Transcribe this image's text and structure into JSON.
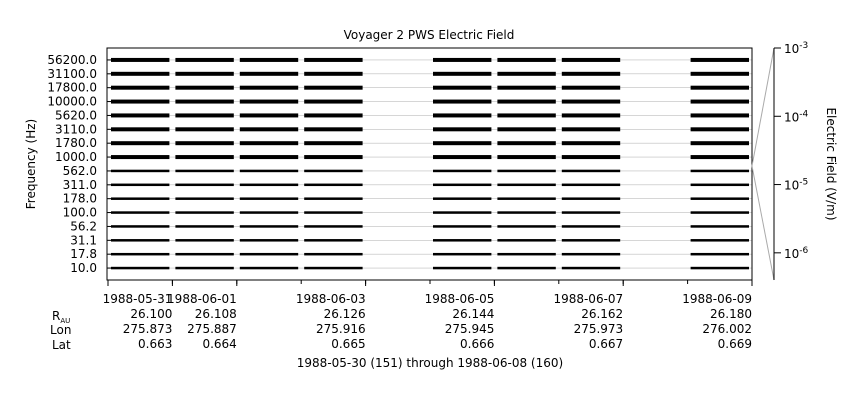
{
  "chart_data": {
    "type": "heatmap",
    "title": "Voyager 2 PWS Electric Field",
    "ylabel": "Frequency (Hz)",
    "colorbar_label": "Electric Field (V/m)",
    "frequency_channels": [
      "10.0",
      "17.8",
      "31.1",
      "56.2",
      "100.0",
      "178.0",
      "311.0",
      "562.0",
      "1000.0",
      "1780.0",
      "3110.0",
      "5620.0",
      "10000.0",
      "17800.0",
      "31100.0",
      "56200.0"
    ],
    "colorbar_scale": "log",
    "colorbar_range": [
      4e-07,
      0.001
    ],
    "colorbar_ticks": [
      {
        "value": 1e-06,
        "mantissa": "10",
        "exponent": "-6"
      },
      {
        "value": 1e-05,
        "mantissa": "10",
        "exponent": "-5"
      },
      {
        "value": 0.0001,
        "mantissa": "10",
        "exponent": "-4"
      },
      {
        "value": 0.001,
        "mantissa": "10",
        "exponent": "-3"
      }
    ],
    "x_range": [
      "1988-05-30",
      "1988-06-09"
    ],
    "x_ticks": [
      {
        "date": "1988-05-31",
        "label": "1988-05-31",
        "r_au": "26.100",
        "lon": "275.873",
        "lat": "0.663"
      },
      {
        "date": "1988-06-01",
        "label": "1988-06-01",
        "r_au": "26.108",
        "lon": "275.887",
        "lat": "0.664"
      },
      {
        "date": "1988-06-03",
        "label": "1988-06-03",
        "r_au": "26.126",
        "lon": "275.916",
        "lat": "0.665"
      },
      {
        "date": "1988-06-05",
        "label": "1988-06-05",
        "r_au": "26.144",
        "lon": "275.945",
        "lat": "0.666"
      },
      {
        "date": "1988-06-07",
        "label": "1988-06-07",
        "r_au": "26.162",
        "lon": "275.973",
        "lat": "0.667"
      },
      {
        "date": "1988-06-09",
        "label": "1988-06-09",
        "r_au": "26.180",
        "lon": "276.002",
        "lat": "0.669"
      }
    ],
    "ephemeris_labels": {
      "r_main": "R",
      "r_sub": "AU",
      "lon": "Lon",
      "lat": "Lat"
    },
    "date_range_text": "1988-05-30 (151) through 1988-06-08 (160)",
    "data_coverage": [
      [
        "1988-05-30",
        "1988-05-31"
      ],
      [
        "1988-05-31",
        "1988-05-31"
      ],
      [
        "1988-05-31",
        "1988-06-01"
      ],
      [
        "1988-06-01",
        "1988-06-01"
      ],
      [
        "1988-06-01",
        "1988-06-02"
      ],
      [
        "1988-06-02",
        "1988-06-03"
      ],
      [
        "1988-06-04",
        "1988-06-05"
      ],
      [
        "1988-06-05",
        "1988-06-06"
      ],
      [
        "1988-06-06",
        "1988-06-07"
      ],
      [
        "1988-06-08",
        "1988-06-09"
      ]
    ],
    "grid": false
  }
}
